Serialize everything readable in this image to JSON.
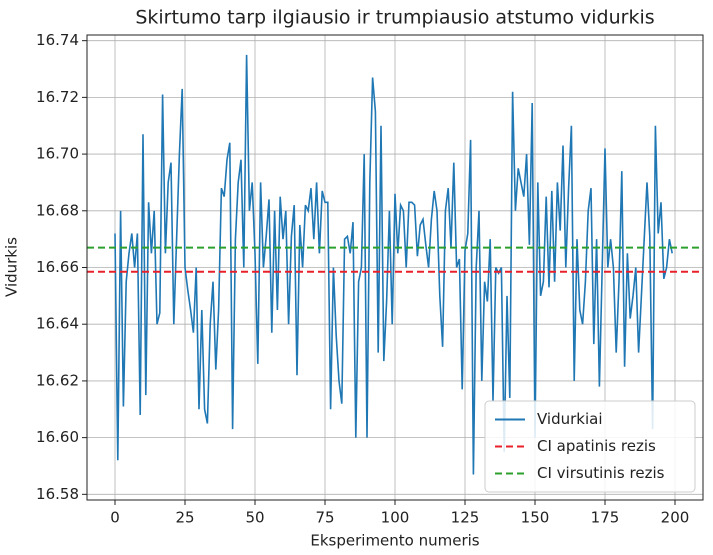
{
  "chart_data": {
    "type": "line",
    "title": "Skirtumo tarp ilgiausio ir trumpiausio atstumo vidurkis",
    "x_label": "Eksperimento numeris",
    "y_label": "Vidurkis",
    "xlim": [
      -10,
      210
    ],
    "ylim": [
      16.578,
      16.742
    ],
    "xticks": [
      0,
      25,
      50,
      75,
      100,
      125,
      150,
      175,
      200
    ],
    "yticks": [
      16.58,
      {
        "value": 16.6,
        "label": "16.60"
      },
      16.62,
      16.64,
      16.66,
      16.68,
      {
        "value": 16.7,
        "label": "16.70"
      },
      16.72,
      16.74
    ],
    "grid": true,
    "legend": "lower right",
    "series": [
      {
        "name": "Vidurkiai",
        "color": "#1f77b4",
        "x": [
          0,
          1,
          2,
          3,
          4,
          5,
          6,
          7,
          8,
          9,
          10,
          11,
          12,
          13,
          14,
          15,
          16,
          17,
          18,
          19,
          20,
          21,
          22,
          23,
          24,
          25,
          26,
          27,
          28,
          29,
          30,
          31,
          32,
          33,
          34,
          35,
          36,
          37,
          38,
          39,
          40,
          41,
          42,
          43,
          44,
          45,
          46,
          47,
          48,
          49,
          50,
          51,
          52,
          53,
          54,
          55,
          56,
          57,
          58,
          59,
          60,
          61,
          62,
          63,
          64,
          65,
          66,
          67,
          68,
          69,
          70,
          71,
          72,
          73,
          74,
          75,
          76,
          77,
          78,
          79,
          80,
          81,
          82,
          83,
          84,
          85,
          86,
          87,
          88,
          89,
          90,
          91,
          92,
          93,
          94,
          95,
          96,
          97,
          98,
          99,
          100,
          101,
          102,
          103,
          104,
          105,
          106,
          107,
          108,
          109,
          110,
          111,
          112,
          113,
          114,
          115,
          116,
          117,
          118,
          119,
          120,
          121,
          122,
          123,
          124,
          125,
          126,
          127,
          128,
          129,
          130,
          131,
          132,
          133,
          134,
          135,
          136,
          137,
          138,
          139,
          140,
          141,
          142,
          143,
          144,
          145,
          146,
          147,
          148,
          149,
          150,
          151,
          152,
          153,
          154,
          155,
          156,
          157,
          158,
          159,
          160,
          161,
          162,
          163,
          164,
          165,
          166,
          167,
          168,
          169,
          170,
          171,
          172,
          173,
          174,
          175,
          176,
          177,
          178,
          179,
          180,
          181,
          182,
          183,
          184,
          185,
          186,
          187,
          188,
          189,
          190,
          191,
          192,
          193,
          194,
          195,
          196,
          197,
          198,
          199
        ],
        "values": [
          16.672,
          16.592,
          16.68,
          16.611,
          16.655,
          16.665,
          16.672,
          16.66,
          16.672,
          16.608,
          16.707,
          16.615,
          16.683,
          16.665,
          16.68,
          16.64,
          16.644,
          16.721,
          16.665,
          16.69,
          16.697,
          16.64,
          16.67,
          16.7,
          16.723,
          16.66,
          16.652,
          16.645,
          16.637,
          16.66,
          16.61,
          16.645,
          16.61,
          16.605,
          16.64,
          16.655,
          16.624,
          16.645,
          16.688,
          16.685,
          16.698,
          16.704,
          16.603,
          16.67,
          16.69,
          16.698,
          16.66,
          16.735,
          16.68,
          16.69,
          16.665,
          16.626,
          16.69,
          16.66,
          16.671,
          16.684,
          16.637,
          16.68,
          16.645,
          16.685,
          16.67,
          16.68,
          16.64,
          16.671,
          16.682,
          16.622,
          16.675,
          16.66,
          16.682,
          16.68,
          16.688,
          16.67,
          16.69,
          16.665,
          16.687,
          16.683,
          16.683,
          16.61,
          16.66,
          16.636,
          16.62,
          16.612,
          16.67,
          16.671,
          16.665,
          16.676,
          16.6,
          16.655,
          16.66,
          16.7,
          16.6,
          16.69,
          16.727,
          16.715,
          16.63,
          16.71,
          16.627,
          16.648,
          16.68,
          16.64,
          16.686,
          16.665,
          16.682,
          16.68,
          16.66,
          16.683,
          16.683,
          16.682,
          16.664,
          16.675,
          16.677,
          16.668,
          16.66,
          16.677,
          16.687,
          16.68,
          16.65,
          16.632,
          16.68,
          16.688,
          16.667,
          16.697,
          16.66,
          16.663,
          16.617,
          16.666,
          16.672,
          16.705,
          16.587,
          16.66,
          16.68,
          16.62,
          16.655,
          16.648,
          16.67,
          16.613,
          16.66,
          16.658,
          16.66,
          16.595,
          16.65,
          16.614,
          16.722,
          16.68,
          16.695,
          16.69,
          16.685,
          16.7,
          16.668,
          16.718,
          16.6,
          16.69,
          16.65,
          16.655,
          16.685,
          16.653,
          16.687,
          16.655,
          16.69,
          16.673,
          16.703,
          16.66,
          16.688,
          16.71,
          16.62,
          16.67,
          16.645,
          16.64,
          16.655,
          16.68,
          16.688,
          16.633,
          16.67,
          16.618,
          16.66,
          16.702,
          16.66,
          16.67,
          16.66,
          16.63,
          16.655,
          16.694,
          16.625,
          16.665,
          16.642,
          16.65,
          16.66,
          16.63,
          16.65,
          16.67,
          16.69,
          16.671,
          16.603,
          16.71,
          16.672,
          16.683,
          16.656,
          16.66,
          16.67,
          16.665
        ]
      }
    ],
    "reference_lines": [
      {
        "name": "CI apatinis rezis",
        "color": "#e8202a",
        "value": 16.6585
      },
      {
        "name": "CI virsutinis rezis",
        "color": "#2ca02c",
        "value": 16.667
      }
    ]
  }
}
